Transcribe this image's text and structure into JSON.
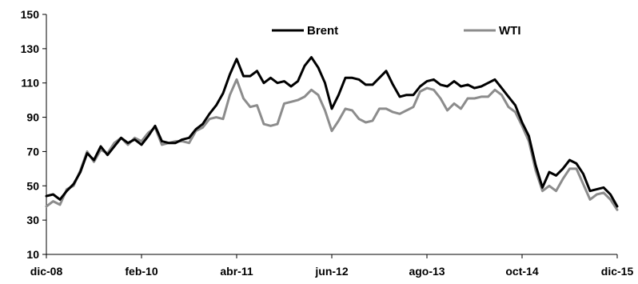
{
  "chart_data": {
    "type": "line",
    "xlabel": "",
    "ylabel": "",
    "ylim": [
      10,
      150
    ],
    "yticks": [
      10,
      30,
      50,
      70,
      90,
      110,
      130,
      150
    ],
    "xlim": [
      "2008-12",
      "2015-12"
    ],
    "xticks": [
      {
        "date": "2008-12",
        "label": "dic-08"
      },
      {
        "date": "2010-02",
        "label": "feb-10"
      },
      {
        "date": "2011-04",
        "label": "abr-11"
      },
      {
        "date": "2012-06",
        "label": "jun-12"
      },
      {
        "date": "2013-08",
        "label": "ago-13"
      },
      {
        "date": "2014-10",
        "label": "oct-14"
      },
      {
        "date": "2015-12",
        "label": "dic-15"
      }
    ],
    "grid": false,
    "legend_position": "top-center",
    "colors": {
      "Brent": "#000000",
      "WTI": "#8c8c8c"
    },
    "series": [
      {
        "name": "Brent",
        "points": [
          [
            "2008-12",
            44
          ],
          [
            "2009-01",
            45
          ],
          [
            "2009-02",
            42
          ],
          [
            "2009-03",
            47
          ],
          [
            "2009-04",
            51
          ],
          [
            "2009-05",
            58
          ],
          [
            "2009-06",
            69
          ],
          [
            "2009-07",
            65
          ],
          [
            "2009-08",
            73
          ],
          [
            "2009-09",
            68
          ],
          [
            "2009-10",
            73
          ],
          [
            "2009-11",
            78
          ],
          [
            "2009-12",
            75
          ],
          [
            "2010-01",
            77
          ],
          [
            "2010-02",
            74
          ],
          [
            "2010-03",
            79
          ],
          [
            "2010-04",
            85
          ],
          [
            "2010-05",
            76
          ],
          [
            "2010-06",
            75
          ],
          [
            "2010-07",
            75
          ],
          [
            "2010-08",
            77
          ],
          [
            "2010-09",
            78
          ],
          [
            "2010-10",
            83
          ],
          [
            "2010-11",
            86
          ],
          [
            "2010-12",
            92
          ],
          [
            "2011-01",
            97
          ],
          [
            "2011-02",
            104
          ],
          [
            "2011-03",
            115
          ],
          [
            "2011-04",
            124
          ],
          [
            "2011-05",
            114
          ],
          [
            "2011-06",
            114
          ],
          [
            "2011-07",
            117
          ],
          [
            "2011-08",
            110
          ],
          [
            "2011-09",
            113
          ],
          [
            "2011-10",
            110
          ],
          [
            "2011-11",
            111
          ],
          [
            "2011-12",
            108
          ],
          [
            "2012-01",
            111
          ],
          [
            "2012-02",
            120
          ],
          [
            "2012-03",
            125
          ],
          [
            "2012-04",
            119
          ],
          [
            "2012-05",
            110
          ],
          [
            "2012-06",
            95
          ],
          [
            "2012-07",
            103
          ],
          [
            "2012-08",
            113
          ],
          [
            "2012-09",
            113
          ],
          [
            "2012-10",
            112
          ],
          [
            "2012-11",
            109
          ],
          [
            "2012-12",
            109
          ],
          [
            "2013-01",
            113
          ],
          [
            "2013-02",
            117
          ],
          [
            "2013-03",
            109
          ],
          [
            "2013-04",
            102
          ],
          [
            "2013-05",
            103
          ],
          [
            "2013-06",
            103
          ],
          [
            "2013-07",
            108
          ],
          [
            "2013-08",
            111
          ],
          [
            "2013-09",
            112
          ],
          [
            "2013-10",
            109
          ],
          [
            "2013-11",
            108
          ],
          [
            "2013-12",
            111
          ],
          [
            "2014-01",
            108
          ],
          [
            "2014-02",
            109
          ],
          [
            "2014-03",
            107
          ],
          [
            "2014-04",
            108
          ],
          [
            "2014-05",
            110
          ],
          [
            "2014-06",
            112
          ],
          [
            "2014-07",
            107
          ],
          [
            "2014-08",
            102
          ],
          [
            "2014-09",
            97
          ],
          [
            "2014-10",
            87
          ],
          [
            "2014-11",
            79
          ],
          [
            "2014-12",
            62
          ],
          [
            "2015-01",
            49
          ],
          [
            "2015-02",
            58
          ],
          [
            "2015-03",
            56
          ],
          [
            "2015-04",
            60
          ],
          [
            "2015-05",
            65
          ],
          [
            "2015-06",
            63
          ],
          [
            "2015-07",
            57
          ],
          [
            "2015-08",
            47
          ],
          [
            "2015-09",
            48
          ],
          [
            "2015-10",
            49
          ],
          [
            "2015-11",
            45
          ],
          [
            "2015-12",
            38
          ]
        ]
      },
      {
        "name": "WTI",
        "points": [
          [
            "2008-12",
            38
          ],
          [
            "2009-01",
            41
          ],
          [
            "2009-02",
            39
          ],
          [
            "2009-03",
            48
          ],
          [
            "2009-04",
            50
          ],
          [
            "2009-05",
            59
          ],
          [
            "2009-06",
            70
          ],
          [
            "2009-07",
            64
          ],
          [
            "2009-08",
            71
          ],
          [
            "2009-09",
            69
          ],
          [
            "2009-10",
            75
          ],
          [
            "2009-11",
            78
          ],
          [
            "2009-12",
            74
          ],
          [
            "2010-01",
            78
          ],
          [
            "2010-02",
            76
          ],
          [
            "2010-03",
            81
          ],
          [
            "2010-04",
            84
          ],
          [
            "2010-05",
            74
          ],
          [
            "2010-06",
            75
          ],
          [
            "2010-07",
            76
          ],
          [
            "2010-08",
            76
          ],
          [
            "2010-09",
            75
          ],
          [
            "2010-10",
            82
          ],
          [
            "2010-11",
            84
          ],
          [
            "2010-12",
            89
          ],
          [
            "2011-01",
            90
          ],
          [
            "2011-02",
            89
          ],
          [
            "2011-03",
            103
          ],
          [
            "2011-04",
            112
          ],
          [
            "2011-05",
            101
          ],
          [
            "2011-06",
            96
          ],
          [
            "2011-07",
            97
          ],
          [
            "2011-08",
            86
          ],
          [
            "2011-09",
            85
          ],
          [
            "2011-10",
            86
          ],
          [
            "2011-11",
            98
          ],
          [
            "2011-12",
            99
          ],
          [
            "2012-01",
            100
          ],
          [
            "2012-02",
            102
          ],
          [
            "2012-03",
            106
          ],
          [
            "2012-04",
            103
          ],
          [
            "2012-05",
            94
          ],
          [
            "2012-06",
            82
          ],
          [
            "2012-07",
            88
          ],
          [
            "2012-08",
            95
          ],
          [
            "2012-09",
            94
          ],
          [
            "2012-10",
            89
          ],
          [
            "2012-11",
            87
          ],
          [
            "2012-12",
            88
          ],
          [
            "2013-01",
            95
          ],
          [
            "2013-02",
            95
          ],
          [
            "2013-03",
            93
          ],
          [
            "2013-04",
            92
          ],
          [
            "2013-05",
            94
          ],
          [
            "2013-06",
            96
          ],
          [
            "2013-07",
            105
          ],
          [
            "2013-08",
            107
          ],
          [
            "2013-09",
            106
          ],
          [
            "2013-10",
            101
          ],
          [
            "2013-11",
            94
          ],
          [
            "2013-12",
            98
          ],
          [
            "2014-01",
            95
          ],
          [
            "2014-02",
            101
          ],
          [
            "2014-03",
            101
          ],
          [
            "2014-04",
            102
          ],
          [
            "2014-05",
            102
          ],
          [
            "2014-06",
            106
          ],
          [
            "2014-07",
            103
          ],
          [
            "2014-08",
            96
          ],
          [
            "2014-09",
            93
          ],
          [
            "2014-10",
            85
          ],
          [
            "2014-11",
            76
          ],
          [
            "2014-12",
            59
          ],
          [
            "2015-01",
            47
          ],
          [
            "2015-02",
            50
          ],
          [
            "2015-03",
            47
          ],
          [
            "2015-04",
            54
          ],
          [
            "2015-05",
            60
          ],
          [
            "2015-06",
            60
          ],
          [
            "2015-07",
            51
          ],
          [
            "2015-08",
            42
          ],
          [
            "2015-09",
            45
          ],
          [
            "2015-10",
            46
          ],
          [
            "2015-11",
            42
          ],
          [
            "2015-12",
            36
          ]
        ]
      }
    ]
  }
}
